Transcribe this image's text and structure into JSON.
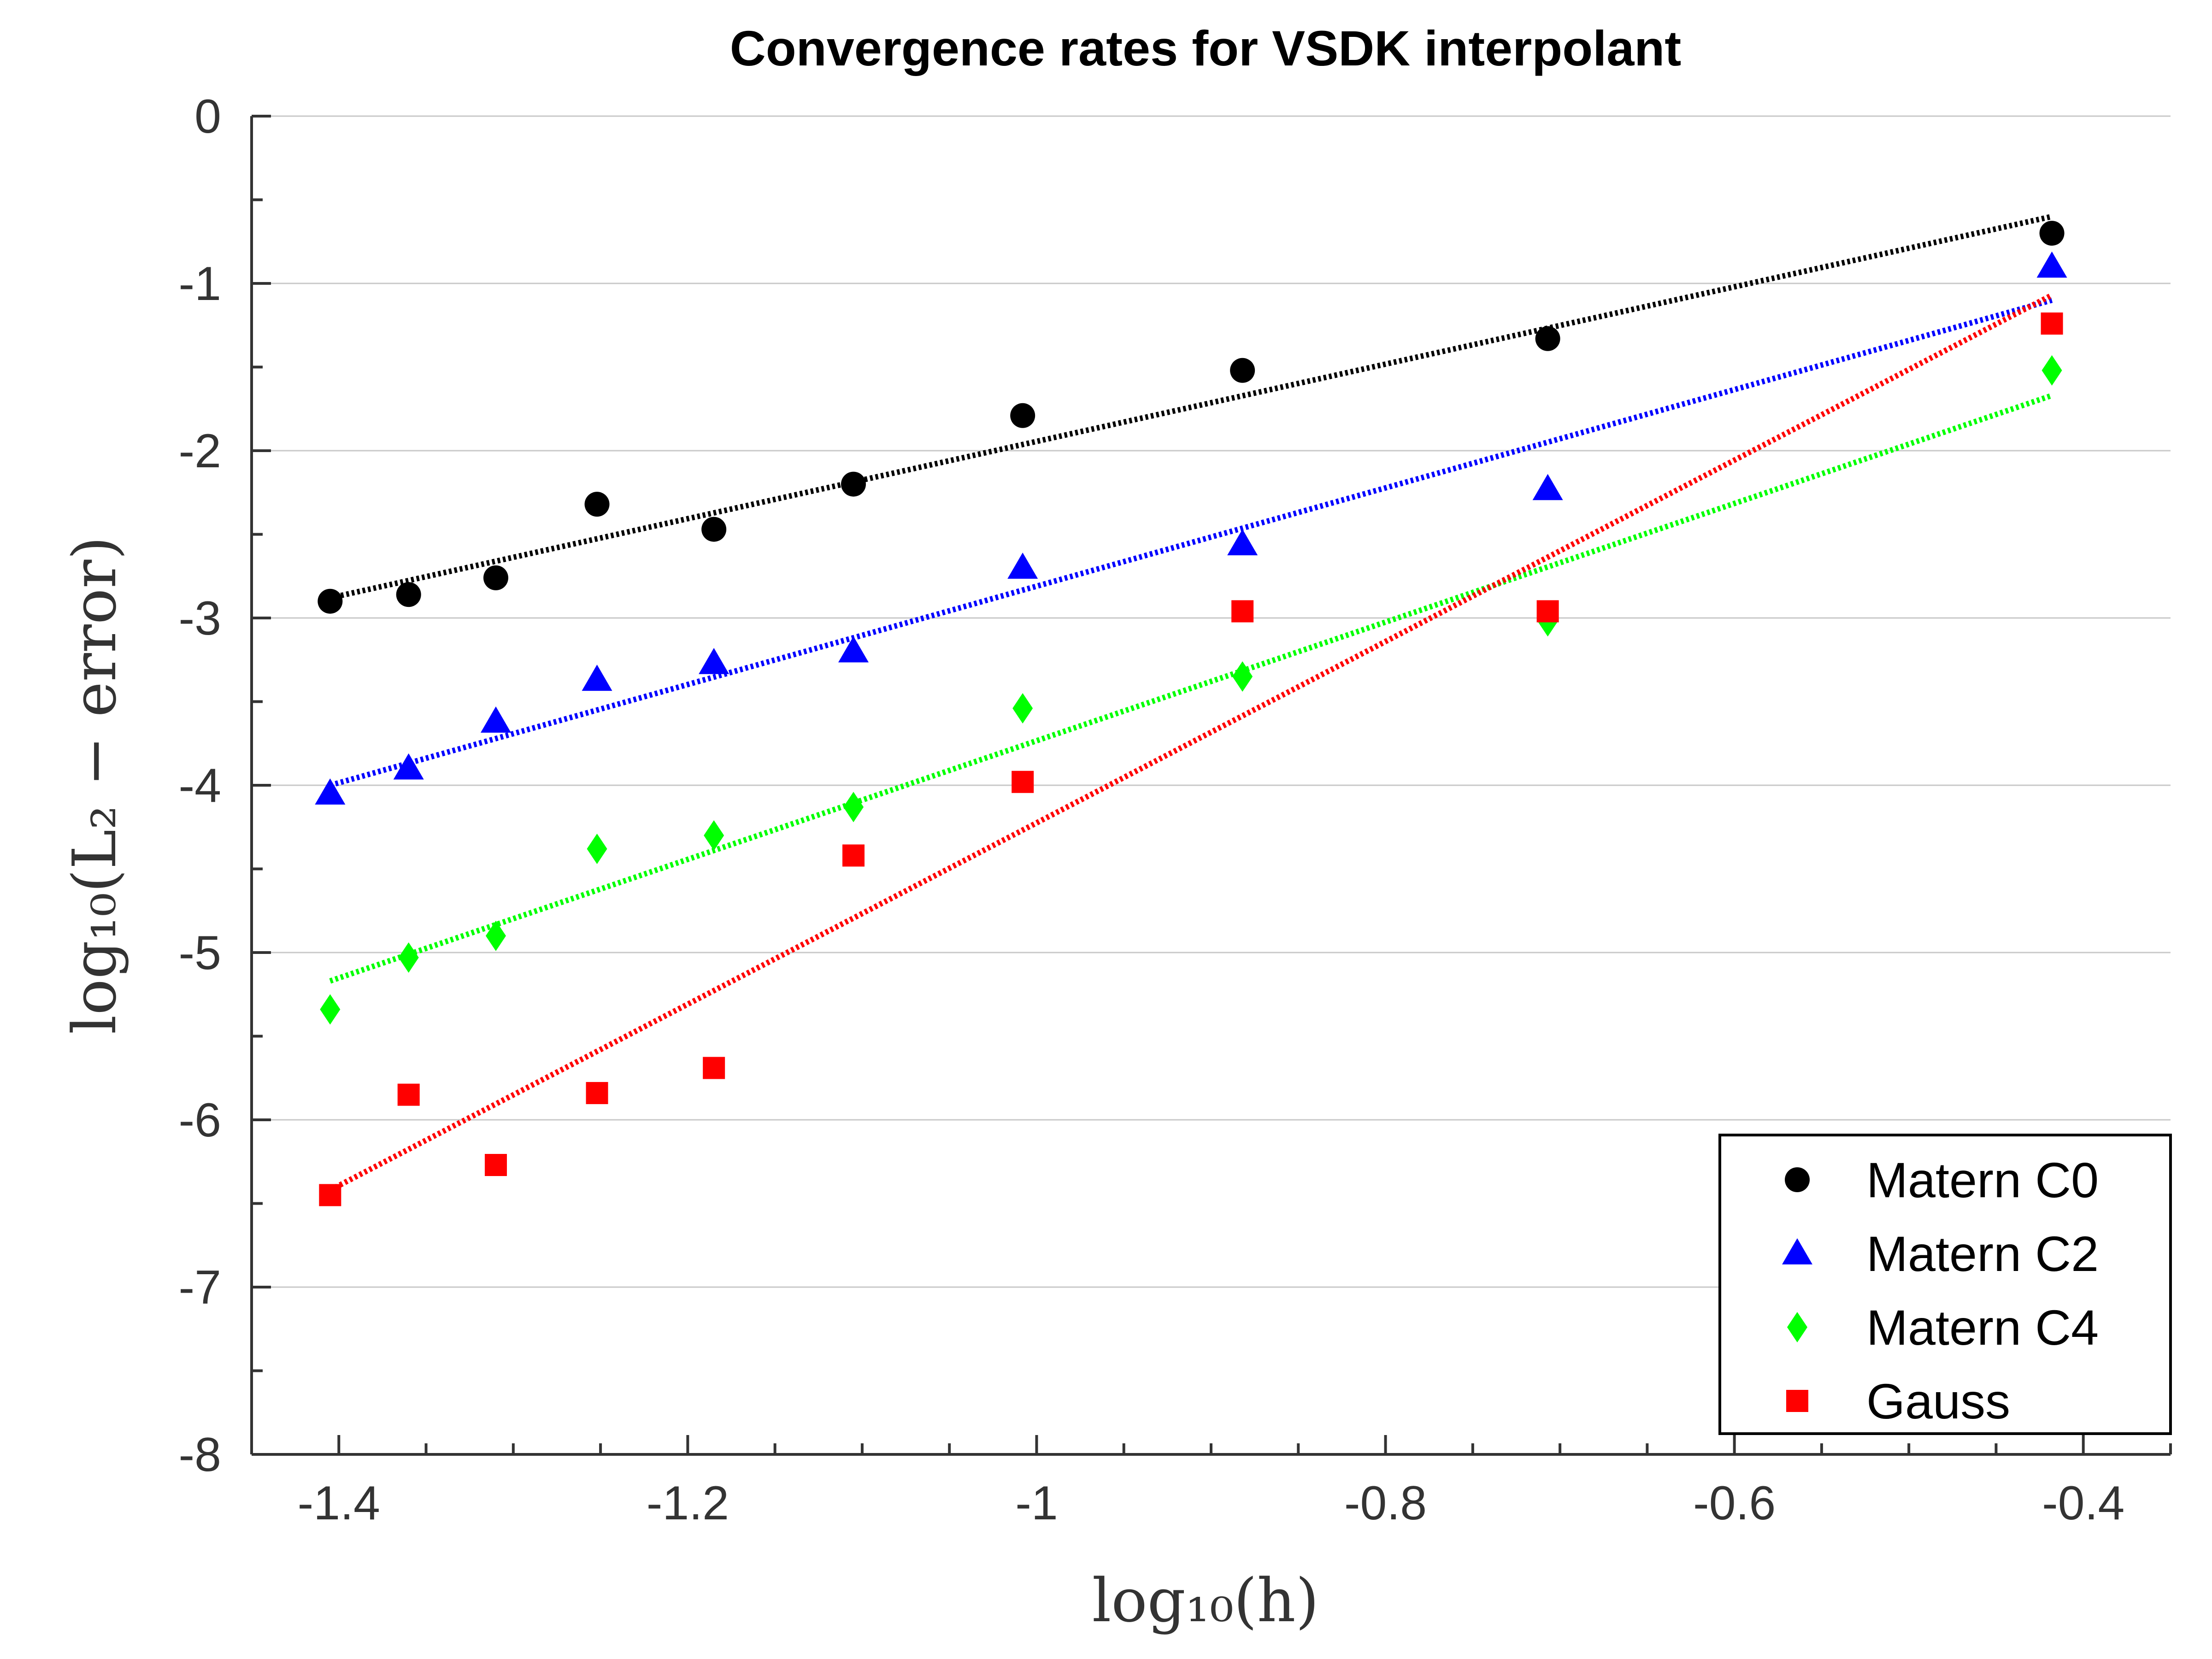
{
  "chart_data": {
    "type": "scatter",
    "title": "Convergence rates for VSDK interpolant",
    "xlabel": "log₁₀(h)",
    "ylabel": "log₁₀(L₂ − error)",
    "xlim": [
      -1.45,
      -0.35
    ],
    "ylim": [
      -8,
      0
    ],
    "xticks": [
      -1.4,
      -1.2,
      -1,
      -0.8,
      -0.6,
      -0.4
    ],
    "xtick_labels": [
      "-1.4",
      "-1.2",
      "-1",
      "-0.8",
      "-0.6",
      "-0.4"
    ],
    "yticks": [
      0,
      -1,
      -2,
      -3,
      -4,
      -5,
      -6,
      -7,
      -8
    ],
    "ytick_labels": [
      "0",
      "-1",
      "-2",
      "-3",
      "-4",
      "-5",
      "-6",
      "-7",
      "-8"
    ],
    "grid": "horizontal",
    "legend_position": "bottom-right",
    "x": [
      -1.405,
      -1.36,
      -1.31,
      -1.252,
      -1.185,
      -1.105,
      -1.008,
      -0.882,
      -0.707,
      -0.418
    ],
    "series": [
      {
        "name": "Matern C0",
        "marker": "circle",
        "color": "#000000",
        "values": [
          -2.9,
          -2.86,
          -2.76,
          -2.32,
          -2.47,
          -2.2,
          -1.79,
          -1.52,
          -1.33,
          -0.7
        ],
        "fit": {
          "x": [
            -1.405,
            -0.418
          ],
          "y": [
            -2.88,
            -0.6
          ]
        }
      },
      {
        "name": "Matern C2",
        "marker": "triangle",
        "color": "#0000ff",
        "values": [
          -4.05,
          -3.9,
          -3.62,
          -3.37,
          -3.27,
          -3.2,
          -2.7,
          -2.56,
          -2.23,
          -0.9
        ],
        "fit": {
          "x": [
            -1.405,
            -0.418
          ],
          "y": [
            -4.0,
            -1.1
          ]
        }
      },
      {
        "name": "Matern C4",
        "marker": "diamond",
        "color": "#00ff00",
        "values": [
          -5.34,
          -5.03,
          -4.9,
          -4.38,
          -4.3,
          -4.13,
          -3.54,
          -3.35,
          -3.02,
          -1.52
        ],
        "fit": {
          "x": [
            -1.405,
            -0.418
          ],
          "y": [
            -5.17,
            -1.67
          ]
        }
      },
      {
        "name": "Gauss",
        "marker": "square",
        "color": "#ff0000",
        "values": [
          -6.45,
          -5.85,
          -6.27,
          -5.84,
          -5.69,
          -4.42,
          -3.98,
          -2.96,
          -2.96,
          -1.24
        ],
        "fit": {
          "x": [
            -1.405,
            -0.418
          ],
          "y": [
            -6.42,
            -1.07
          ]
        }
      }
    ]
  }
}
